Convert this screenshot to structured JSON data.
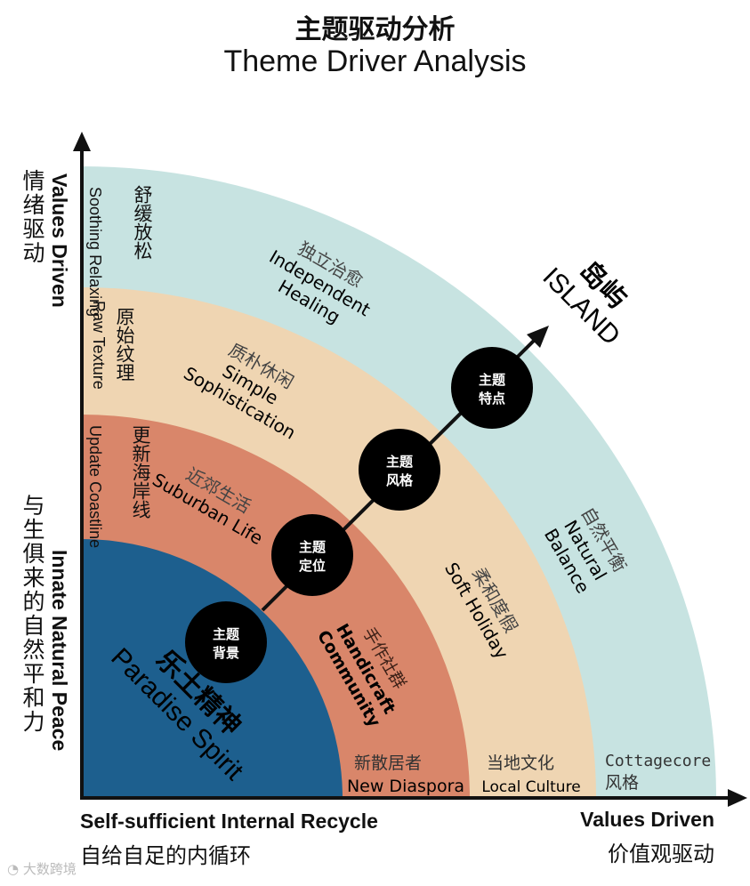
{
  "title": {
    "cn": "主题驱动分析",
    "en": "Theme Driver Analysis"
  },
  "axes": {
    "y_top_en": "Values Driven",
    "y_top_cn": "情绪驱动",
    "y_bottom_en": "Innate Natural Peace",
    "y_bottom_cn": "与生俱来的自然平和力",
    "x_left_en": "Self-sufficient Internal Recycle",
    "x_left_cn": "自给自足的内循环",
    "x_right_en": "Values Driven",
    "x_right_cn": "价值观驱动"
  },
  "colors": {
    "outer": "#c7e3e1",
    "band3": "#efd5b2",
    "band2": "#d9866a",
    "core": "#1d5f8e",
    "node": "#000000"
  },
  "arrow_label": {
    "cn": "岛屿",
    "en": "ISLAND"
  },
  "core": {
    "cn": "乐土精神",
    "en": "Paradise Spirit"
  },
  "nodes": [
    {
      "line1": "主题",
      "line2": "背景"
    },
    {
      "line1": "主题",
      "line2": "定位"
    },
    {
      "line1": "主题",
      "line2": "风格"
    },
    {
      "line1": "主题",
      "line2": "特点"
    }
  ],
  "vertical_labels": {
    "outer": {
      "en1": "Soothing",
      "en2": "Relaxing",
      "cn": "舒缓放松"
    },
    "band3": {
      "en1": "Raw Texture",
      "cn": "原始纹理"
    },
    "band2": {
      "en1": "Update",
      "en2": "Coastline",
      "cn": "更新海岸线"
    }
  },
  "band_labels": {
    "independent": {
      "cn": "独立治愈",
      "en1": "Independent",
      "en2": "Healing"
    },
    "simple": {
      "cn": "质朴休闲",
      "en1": "Simple",
      "en2": "Sophistication"
    },
    "suburban": {
      "cn": "近郊生活",
      "en": "Suburban Life"
    },
    "natural": {
      "cn": "自然平衡",
      "en1": "Natural",
      "en2": "Balance"
    },
    "soft": {
      "cn": "柔和度假",
      "en": "Soft Holiday"
    },
    "handicraft": {
      "cn": "手作社群",
      "en1": "Handicraft",
      "en2": "Community"
    }
  },
  "bottom_labels": {
    "diaspora": {
      "cn": "新散居者",
      "en": "New Diaspora"
    },
    "local": {
      "cn": "当地文化",
      "en": "Local Culture"
    },
    "cottage": {
      "en": "Cottagecore",
      "cn": "风格"
    }
  },
  "watermark": "大数跨境"
}
